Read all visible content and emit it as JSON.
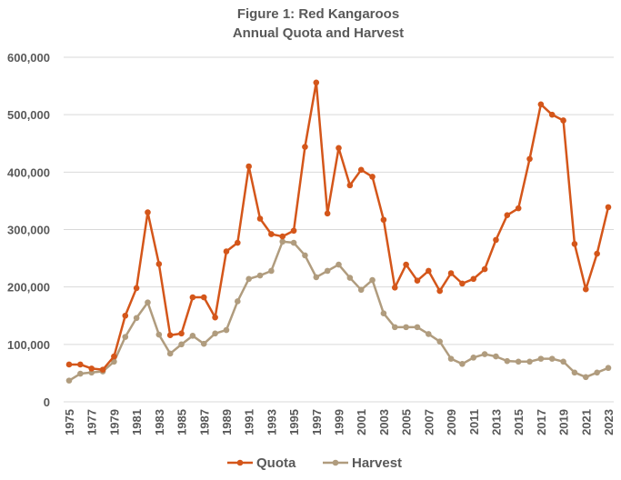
{
  "chart_data": {
    "type": "line",
    "title": "Figure 1: Red Kangaroos",
    "subtitle": "Annual Quota and Harvest",
    "xlabel": "",
    "ylabel": "",
    "ylim": [
      0,
      600000
    ],
    "yticks": [
      "0",
      "100,000",
      "200,000",
      "300,000",
      "400,000",
      "500,000",
      "600,000"
    ],
    "ytick_values": [
      0,
      100000,
      200000,
      300000,
      400000,
      500000,
      600000
    ],
    "grid": true,
    "legend_position": "bottom",
    "x": [
      1975,
      1976,
      1977,
      1978,
      1979,
      1980,
      1981,
      1982,
      1983,
      1984,
      1985,
      1986,
      1987,
      1988,
      1989,
      1990,
      1991,
      1992,
      1993,
      1994,
      1995,
      1996,
      1997,
      1998,
      1999,
      2000,
      2001,
      2002,
      2003,
      2004,
      2005,
      2006,
      2007,
      2008,
      2009,
      2010,
      2011,
      2012,
      2013,
      2014,
      2015,
      2016,
      2017,
      2018,
      2019,
      2020,
      2021,
      2022,
      2023
    ],
    "xtick_labels": [
      "1975",
      "1977",
      "1979",
      "1981",
      "1983",
      "1985",
      "1987",
      "1989",
      "1991",
      "1993",
      "1995",
      "1997",
      "1999",
      "2001",
      "2003",
      "2005",
      "2007",
      "2009",
      "2011",
      "2013",
      "2015",
      "2017",
      "2019",
      "2021",
      "2023"
    ],
    "series": [
      {
        "name": "Quota",
        "color": "#D4561A",
        "values": [
          65000,
          65000,
          58000,
          56000,
          79000,
          150000,
          198000,
          330000,
          240000,
          116000,
          119000,
          182000,
          182000,
          147000,
          262000,
          277000,
          410000,
          319000,
          292000,
          288000,
          298000,
          444000,
          556000,
          328000,
          442000,
          377000,
          404000,
          392000,
          317000,
          199000,
          239000,
          211000,
          228000,
          193000,
          224000,
          206000,
          214000,
          231000,
          282000,
          325000,
          337000,
          423000,
          518000,
          500000,
          490000,
          275000,
          196000,
          258000,
          339000
        ]
      },
      {
        "name": "Harvest",
        "color": "#B09C7E",
        "values": [
          37000,
          49000,
          51000,
          53000,
          70000,
          113000,
          146000,
          173000,
          117000,
          84000,
          100000,
          115000,
          101000,
          119000,
          125000,
          175000,
          214000,
          220000,
          228000,
          279000,
          277000,
          255000,
          217000,
          228000,
          239000,
          216000,
          195000,
          212000,
          154000,
          130000,
          130000,
          130000,
          118000,
          105000,
          75000,
          66000,
          77000,
          83000,
          79000,
          71000,
          70000,
          70000,
          75000,
          75000,
          70000,
          51000,
          43000,
          51000,
          59000
        ]
      }
    ]
  }
}
